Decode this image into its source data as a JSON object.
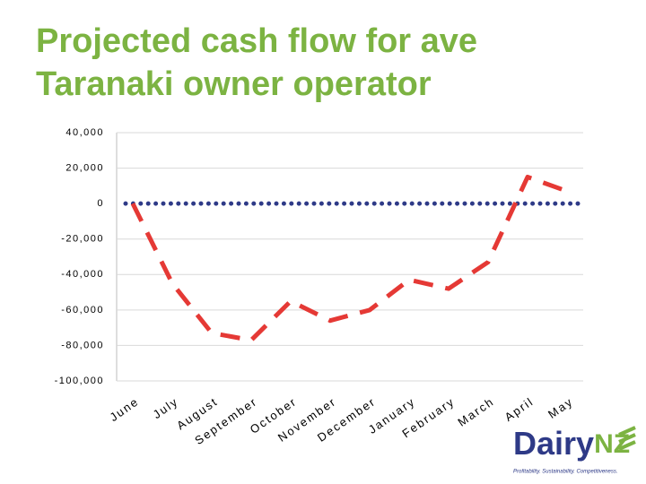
{
  "chart_data": {
    "type": "line",
    "title_lines": [
      "Projected cash flow for ave",
      "Taranaki owner operator"
    ],
    "categories": [
      "June",
      "July",
      "August",
      "September",
      "October",
      "November",
      "December",
      "January",
      "February",
      "March",
      "April",
      "May"
    ],
    "series": [
      {
        "name": "Cash flow",
        "color": "#e53935",
        "values": [
          0,
          -45000,
          -73000,
          -77000,
          -55000,
          -66000,
          -60000,
          -43000,
          -48000,
          -33000,
          15000,
          7000
        ]
      }
    ],
    "zero_line_color": "#2e3a87",
    "ylim": [
      -100000,
      40000
    ],
    "yticks": [
      {
        "value": -100000,
        "label": "-100,000"
      },
      {
        "value": -80000,
        "label": "-80,000"
      },
      {
        "value": -60000,
        "label": "-60,000"
      },
      {
        "value": -40000,
        "label": "-40,000"
      },
      {
        "value": -20000,
        "label": "-20,000"
      },
      0,
      {
        "value": 20000,
        "label": "20,000"
      },
      {
        "value": 40000,
        "label": "40,000"
      }
    ],
    "grid": true
  },
  "logo": {
    "brand": "Dairy",
    "brand_suffix": "NZ",
    "tagline": "Profitability. Sustainability. Competitiveness."
  }
}
